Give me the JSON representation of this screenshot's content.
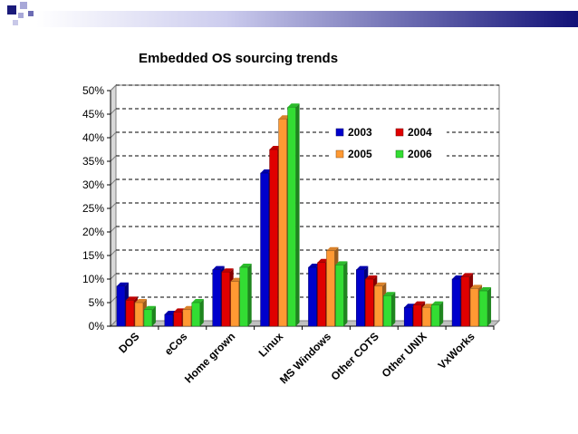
{
  "chart_data": {
    "type": "bar",
    "title": "Embedded OS sourcing trends",
    "xlabel": "",
    "ylabel": "",
    "ylim": [
      0,
      50
    ],
    "yticks": [
      "0%",
      "5%",
      "10%",
      "15%",
      "20%",
      "25%",
      "30%",
      "35%",
      "40%",
      "45%",
      "50%"
    ],
    "grid": true,
    "legend_position": "top-right",
    "categories": [
      "DOS",
      "eCos",
      "Home grown",
      "Linux",
      "MS Windows",
      "Other COTS",
      "Other UNIX",
      "VxWorks"
    ],
    "series": [
      {
        "name": "2003",
        "color": "#0000cc",
        "values": [
          8.5,
          2.5,
          12,
          32.5,
          12.5,
          12,
          4,
          10
        ]
      },
      {
        "name": "2004",
        "color": "#e00000",
        "values": [
          5.5,
          3,
          11.5,
          37.5,
          13.5,
          10,
          4.5,
          10.5
        ]
      },
      {
        "name": "2005",
        "color": "#ff9933",
        "values": [
          5,
          3.5,
          9.5,
          44,
          16,
          8.5,
          4,
          8
        ]
      },
      {
        "name": "2006",
        "color": "#33dd33",
        "values": [
          3.5,
          5,
          12.5,
          46.5,
          13,
          6.5,
          4.5,
          7.5
        ]
      }
    ]
  }
}
